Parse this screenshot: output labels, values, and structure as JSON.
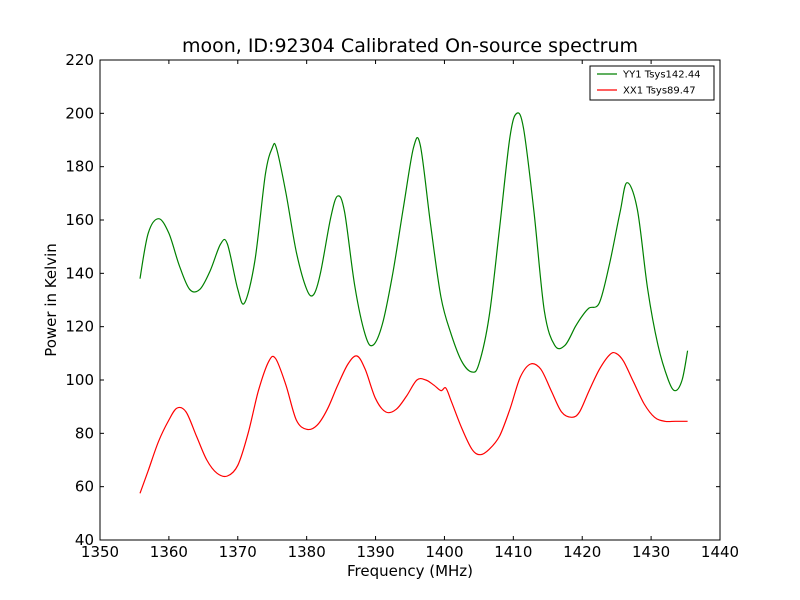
{
  "chart_data": {
    "type": "line",
    "title": "moon, ID:92304 Calibrated On-source spectrum",
    "xlabel": "Frequency (MHz)",
    "ylabel": "Power in Kelvin",
    "xlim": [
      1350,
      1440
    ],
    "ylim": [
      40,
      220
    ],
    "xticks": [
      "1350",
      "1360",
      "1370",
      "1380",
      "1390",
      "1400",
      "1410",
      "1420",
      "1430",
      "1440"
    ],
    "yticks": [
      "40",
      "60",
      "80",
      "100",
      "120",
      "140",
      "160",
      "180",
      "200",
      "220"
    ],
    "grid": false,
    "legend_position": "top-right",
    "series": [
      {
        "name": "YY1 Tsys142.44",
        "color": "#008000",
        "x": [
          1355.8,
          1357,
          1358.5,
          1360,
          1361.5,
          1363,
          1364.5,
          1366,
          1367.5,
          1368.5,
          1370,
          1371,
          1372.5,
          1374,
          1375,
          1375.6,
          1377,
          1378.5,
          1380,
          1381,
          1382,
          1383.5,
          1384.5,
          1385.5,
          1387,
          1388.5,
          1389.6,
          1391,
          1392.5,
          1394,
          1395.5,
          1396.5,
          1398,
          1399.5,
          1401,
          1402.5,
          1404,
          1405,
          1406.5,
          1408,
          1409.5,
          1410.5,
          1411.5,
          1413,
          1414.5,
          1416,
          1417.5,
          1419,
          1420,
          1421,
          1422.5,
          1424,
          1425.5,
          1426.5,
          1428,
          1429.5,
          1431,
          1432.5,
          1433.5,
          1434.5,
          1435.3
        ],
        "values": [
          138,
          155,
          160.5,
          155,
          143,
          134,
          134,
          141,
          151,
          151,
          134,
          129,
          145,
          177,
          187,
          187,
          170,
          148,
          134,
          132,
          140,
          161,
          169,
          163,
          135,
          117,
          113,
          121,
          140,
          164,
          187,
          188,
          158,
          131,
          117,
          107,
          103,
          106,
          124,
          157,
          191,
          200,
          194,
          163,
          126,
          113,
          113,
          120,
          124,
          127,
          129,
          144,
          163,
          174,
          164,
          134,
          113,
          100,
          96,
          100,
          111
        ]
      },
      {
        "name": "XX1 Tsys89.47",
        "color": "#ff0000",
        "x": [
          1355.8,
          1357,
          1358.5,
          1360,
          1361.2,
          1362.5,
          1364,
          1365.5,
          1367,
          1368.5,
          1370,
          1371.5,
          1373,
          1374.5,
          1375.5,
          1377,
          1378.5,
          1380,
          1381.5,
          1383,
          1384.5,
          1386,
          1387.3,
          1388.5,
          1390,
          1391.5,
          1393,
          1394.5,
          1396,
          1397.3,
          1398.5,
          1399.5,
          1400.2,
          1401,
          1402.5,
          1404,
          1405.2,
          1406.5,
          1408,
          1409.5,
          1411,
          1412.5,
          1414,
          1415.5,
          1417,
          1418.5,
          1419.6,
          1421,
          1422.5,
          1424,
          1424.9,
          1426,
          1427.5,
          1429,
          1430.5,
          1432,
          1433.5,
          1435.3
        ],
        "values": [
          57.5,
          66,
          77,
          85,
          89.5,
          88,
          79,
          70,
          65,
          64,
          68,
          80,
          96,
          107,
          108,
          98,
          85,
          81.5,
          83,
          89,
          98,
          106,
          109,
          104,
          93,
          88,
          89,
          94,
          100,
          100,
          98,
          96,
          97,
          92,
          82,
          74,
          72,
          74,
          79,
          89,
          101,
          106,
          104,
          96,
          88,
          86,
          88,
          96,
          104,
          109.5,
          110,
          107,
          99,
          91,
          86,
          84.5,
          84.5,
          84.5
        ]
      }
    ]
  }
}
